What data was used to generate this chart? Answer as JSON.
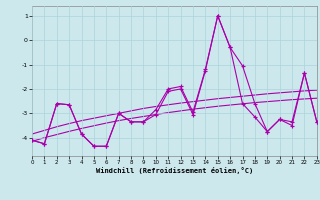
{
  "x": [
    0,
    1,
    2,
    3,
    4,
    5,
    6,
    7,
    8,
    9,
    10,
    11,
    12,
    13,
    14,
    15,
    16,
    17,
    18,
    19,
    20,
    21,
    22,
    23
  ],
  "line1": [
    -4.1,
    -4.25,
    -2.6,
    -2.65,
    -3.85,
    -4.35,
    -4.35,
    -3.0,
    -3.35,
    -3.35,
    -2.85,
    -2.0,
    -1.9,
    -2.95,
    -1.2,
    1.0,
    -0.3,
    -1.05,
    -2.6,
    -3.75,
    -3.25,
    -3.35,
    -1.35,
    -3.35
  ],
  "line2": [
    -4.1,
    -4.25,
    -2.6,
    -2.65,
    -3.85,
    -4.35,
    -4.35,
    -3.0,
    -3.35,
    -3.35,
    -3.05,
    -2.1,
    -2.0,
    -3.05,
    -1.25,
    1.0,
    -0.3,
    -2.6,
    -3.15,
    -3.75,
    -3.25,
    -3.5,
    -1.35,
    -3.35
  ],
  "trend_upper": [
    -3.85,
    -3.7,
    -3.55,
    -3.42,
    -3.3,
    -3.2,
    -3.1,
    -3.0,
    -2.9,
    -2.8,
    -2.72,
    -2.65,
    -2.58,
    -2.52,
    -2.46,
    -2.4,
    -2.35,
    -2.3,
    -2.25,
    -2.2,
    -2.16,
    -2.12,
    -2.08,
    -2.05
  ],
  "trend_lower": [
    -4.15,
    -4.0,
    -3.87,
    -3.74,
    -3.62,
    -3.51,
    -3.4,
    -3.3,
    -3.21,
    -3.13,
    -3.05,
    -2.97,
    -2.9,
    -2.83,
    -2.77,
    -2.71,
    -2.66,
    -2.61,
    -2.56,
    -2.52,
    -2.48,
    -2.44,
    -2.41,
    -2.38
  ],
  "bg_color": "#cce8ed",
  "grid_color": "#aad4da",
  "line_color": "#aa00aa",
  "xlabel": "Windchill (Refroidissement éolien,°C)",
  "yticks": [
    1,
    0,
    -1,
    -2,
    -3,
    -4
  ],
  "ylim": [
    -4.75,
    1.4
  ],
  "xlim": [
    0,
    23
  ]
}
